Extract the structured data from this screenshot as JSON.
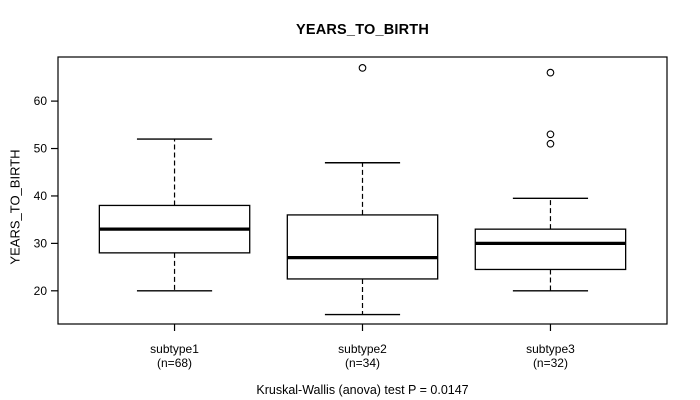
{
  "chart_data": {
    "type": "boxplot",
    "title": "YEARS_TO_BIRTH",
    "ylabel": "YEARS_TO_BIRTH",
    "xlabel": "",
    "caption": "Kruskal-Wallis (anova) test P = 0.0147",
    "p_value": 0.0147,
    "categories": [
      "subtype1",
      "subtype2",
      "subtype3"
    ],
    "category_sublabels": [
      "(n=68)",
      "(n=34)",
      "(n=32)"
    ],
    "category_counts": [
      68,
      34,
      32
    ],
    "y_ticks": [
      20,
      30,
      40,
      50,
      60
    ],
    "ylim": [
      13,
      69.3
    ],
    "grid": false,
    "legend": "none",
    "series": [
      {
        "name": "subtype1",
        "n": 68,
        "whisker_low": 20,
        "q1": 28,
        "median": 33,
        "q3": 38,
        "whisker_high": 52,
        "outliers": []
      },
      {
        "name": "subtype2",
        "n": 34,
        "whisker_low": 15,
        "q1": 22.5,
        "median": 27,
        "q3": 36,
        "whisker_high": 47,
        "outliers": [
          67
        ]
      },
      {
        "name": "subtype3",
        "n": 32,
        "whisker_low": 20,
        "q1": 24.5,
        "median": 30,
        "q3": 33,
        "whisker_high": 39.5,
        "outliers": [
          51,
          53,
          66
        ]
      }
    ],
    "colors": {
      "line": "#000000",
      "background": "#ffffff",
      "box_fill": "#ffffff"
    }
  }
}
